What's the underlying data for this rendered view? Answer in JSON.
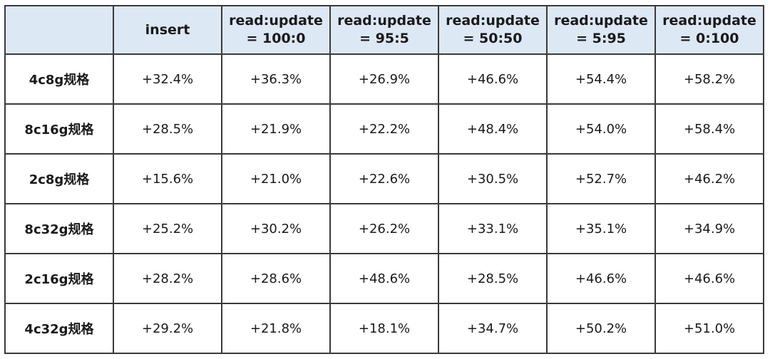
{
  "table": {
    "header": [
      "",
      "insert",
      "read:update\n= 100:0",
      "read:update\n= 95:5",
      "read:update\n= 50:50",
      "read:update\n= 5:95",
      "read:update\n= 0:100"
    ],
    "rows": [
      [
        "4c8g规格",
        "+32.4%",
        "+36.3%",
        "+26.9%",
        "+46.6%",
        "+54.4%",
        "+58.2%"
      ],
      [
        "8c16g规格",
        "+28.5%",
        "+21.9%",
        "+22.2%",
        "+48.4%",
        "+54.0%",
        "+58.4%"
      ],
      [
        "2c8g规格",
        "+15.6%",
        "+21.0%",
        "+22.6%",
        "+30.5%",
        "+52.7%",
        "+46.2%"
      ],
      [
        "8c32g规格",
        "+25.2%",
        "+30.2%",
        "+26.2%",
        "+33.1%",
        "+35.1%",
        "+34.9%"
      ],
      [
        "2c16g规格",
        "+28.2%",
        "+28.6%",
        "+48.6%",
        "+28.5%",
        "+46.6%",
        "+46.6%"
      ],
      [
        "4c32g规格",
        "+29.2%",
        "+21.8%",
        "+18.1%",
        "+34.7%",
        "+50.2%",
        "+51.0%"
      ]
    ]
  }
}
